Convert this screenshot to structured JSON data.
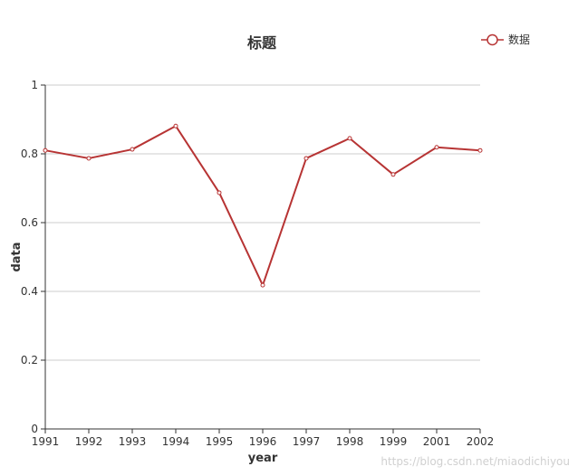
{
  "chart_data": {
    "type": "line",
    "title": "标题",
    "xlabel": "year",
    "ylabel": "data",
    "categories": [
      "1991",
      "1992",
      "1993",
      "1994",
      "1995",
      "1996",
      "1997",
      "1998",
      "1999",
      "2001",
      "2002"
    ],
    "series": [
      {
        "name": "数据",
        "values": [
          0.81,
          0.787,
          0.813,
          0.881,
          0.687,
          0.418,
          0.787,
          0.845,
          0.74,
          0.819,
          0.81
        ],
        "color": "#b73434"
      }
    ],
    "ylim": [
      0,
      1
    ],
    "yticks": [
      "0",
      "0.2",
      "0.4",
      "0.6",
      "0.8",
      "1"
    ],
    "grid": true,
    "legend": "top-right"
  },
  "watermark": "https://blog.csdn.net/miaodichiyou"
}
